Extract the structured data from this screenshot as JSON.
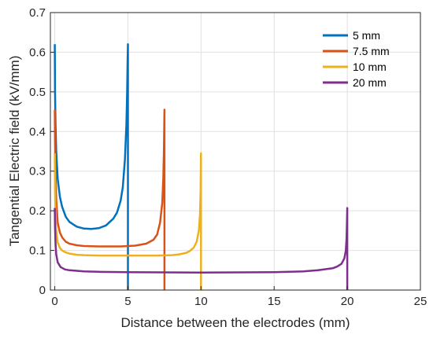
{
  "chart_data": {
    "type": "line",
    "xlabel": "Distance between the electrodes (mm)",
    "ylabel": "Tangential Electric field (kV/mm)",
    "xlim": [
      -0.3,
      25
    ],
    "ylim": [
      0,
      0.7
    ],
    "xticks": [
      0,
      5,
      10,
      15,
      20,
      25
    ],
    "yticks": [
      0,
      0.1,
      0.2,
      0.3,
      0.4,
      0.5,
      0.6,
      0.7
    ],
    "grid": true,
    "legend_position": "top-right",
    "series": [
      {
        "name": "5 mm",
        "color": "#0072BD",
        "gap": 5,
        "peak": 0.62,
        "x": [
          0,
          0.02,
          0.05,
          0.1,
          0.2,
          0.35,
          0.5,
          0.75,
          1.0,
          1.5,
          2.0,
          2.5,
          3.0,
          3.5,
          4.0,
          4.25,
          4.5,
          4.65,
          4.8,
          4.9,
          4.95,
          4.98,
          5.0,
          5.0
        ],
        "y": [
          0.62,
          0.5,
          0.42,
          0.35,
          0.28,
          0.235,
          0.21,
          0.185,
          0.172,
          0.16,
          0.155,
          0.154,
          0.156,
          0.163,
          0.18,
          0.195,
          0.225,
          0.26,
          0.33,
          0.42,
          0.5,
          0.58,
          0.62,
          0
        ]
      },
      {
        "name": "7.5 mm",
        "color": "#D95319",
        "gap": 7.5,
        "peak": 0.455,
        "x": [
          0,
          0.02,
          0.05,
          0.1,
          0.2,
          0.35,
          0.5,
          0.75,
          1.0,
          1.5,
          2.0,
          3.0,
          3.75,
          4.5,
          5.5,
          6.25,
          6.75,
          7.0,
          7.2,
          7.35,
          7.42,
          7.46,
          7.5,
          7.5
        ],
        "y": [
          0.455,
          0.37,
          0.3,
          0.23,
          0.17,
          0.145,
          0.133,
          0.122,
          0.117,
          0.113,
          0.111,
          0.11,
          0.11,
          0.11,
          0.112,
          0.117,
          0.127,
          0.14,
          0.17,
          0.22,
          0.28,
          0.35,
          0.455,
          0
        ]
      },
      {
        "name": "10 mm",
        "color": "#EDB120",
        "gap": 10,
        "peak": 0.345,
        "x": [
          0,
          0.02,
          0.05,
          0.1,
          0.2,
          0.35,
          0.5,
          0.75,
          1.0,
          1.5,
          2.0,
          3.0,
          5.0,
          7.0,
          8.0,
          8.5,
          9.0,
          9.25,
          9.5,
          9.7,
          9.85,
          9.93,
          9.97,
          10.0,
          10.0
        ],
        "y": [
          0.345,
          0.25,
          0.19,
          0.15,
          0.12,
          0.106,
          0.1,
          0.095,
          0.092,
          0.089,
          0.088,
          0.087,
          0.087,
          0.087,
          0.088,
          0.09,
          0.094,
          0.099,
          0.107,
          0.122,
          0.15,
          0.19,
          0.25,
          0.345,
          0
        ]
      },
      {
        "name": "20 mm",
        "color": "#7E2F8E",
        "gap": 20,
        "peak": 0.207,
        "x": [
          0,
          0.02,
          0.05,
          0.1,
          0.2,
          0.4,
          0.7,
          1.0,
          2.0,
          3.0,
          5.0,
          10.0,
          15.0,
          17.0,
          18.0,
          19.0,
          19.3,
          19.6,
          19.8,
          19.9,
          19.95,
          19.98,
          20.0,
          20.0
        ],
        "y": [
          0.207,
          0.16,
          0.12,
          0.09,
          0.07,
          0.058,
          0.052,
          0.05,
          0.047,
          0.046,
          0.045,
          0.044,
          0.045,
          0.047,
          0.05,
          0.055,
          0.059,
          0.066,
          0.08,
          0.1,
          0.13,
          0.17,
          0.207,
          0
        ]
      }
    ]
  }
}
